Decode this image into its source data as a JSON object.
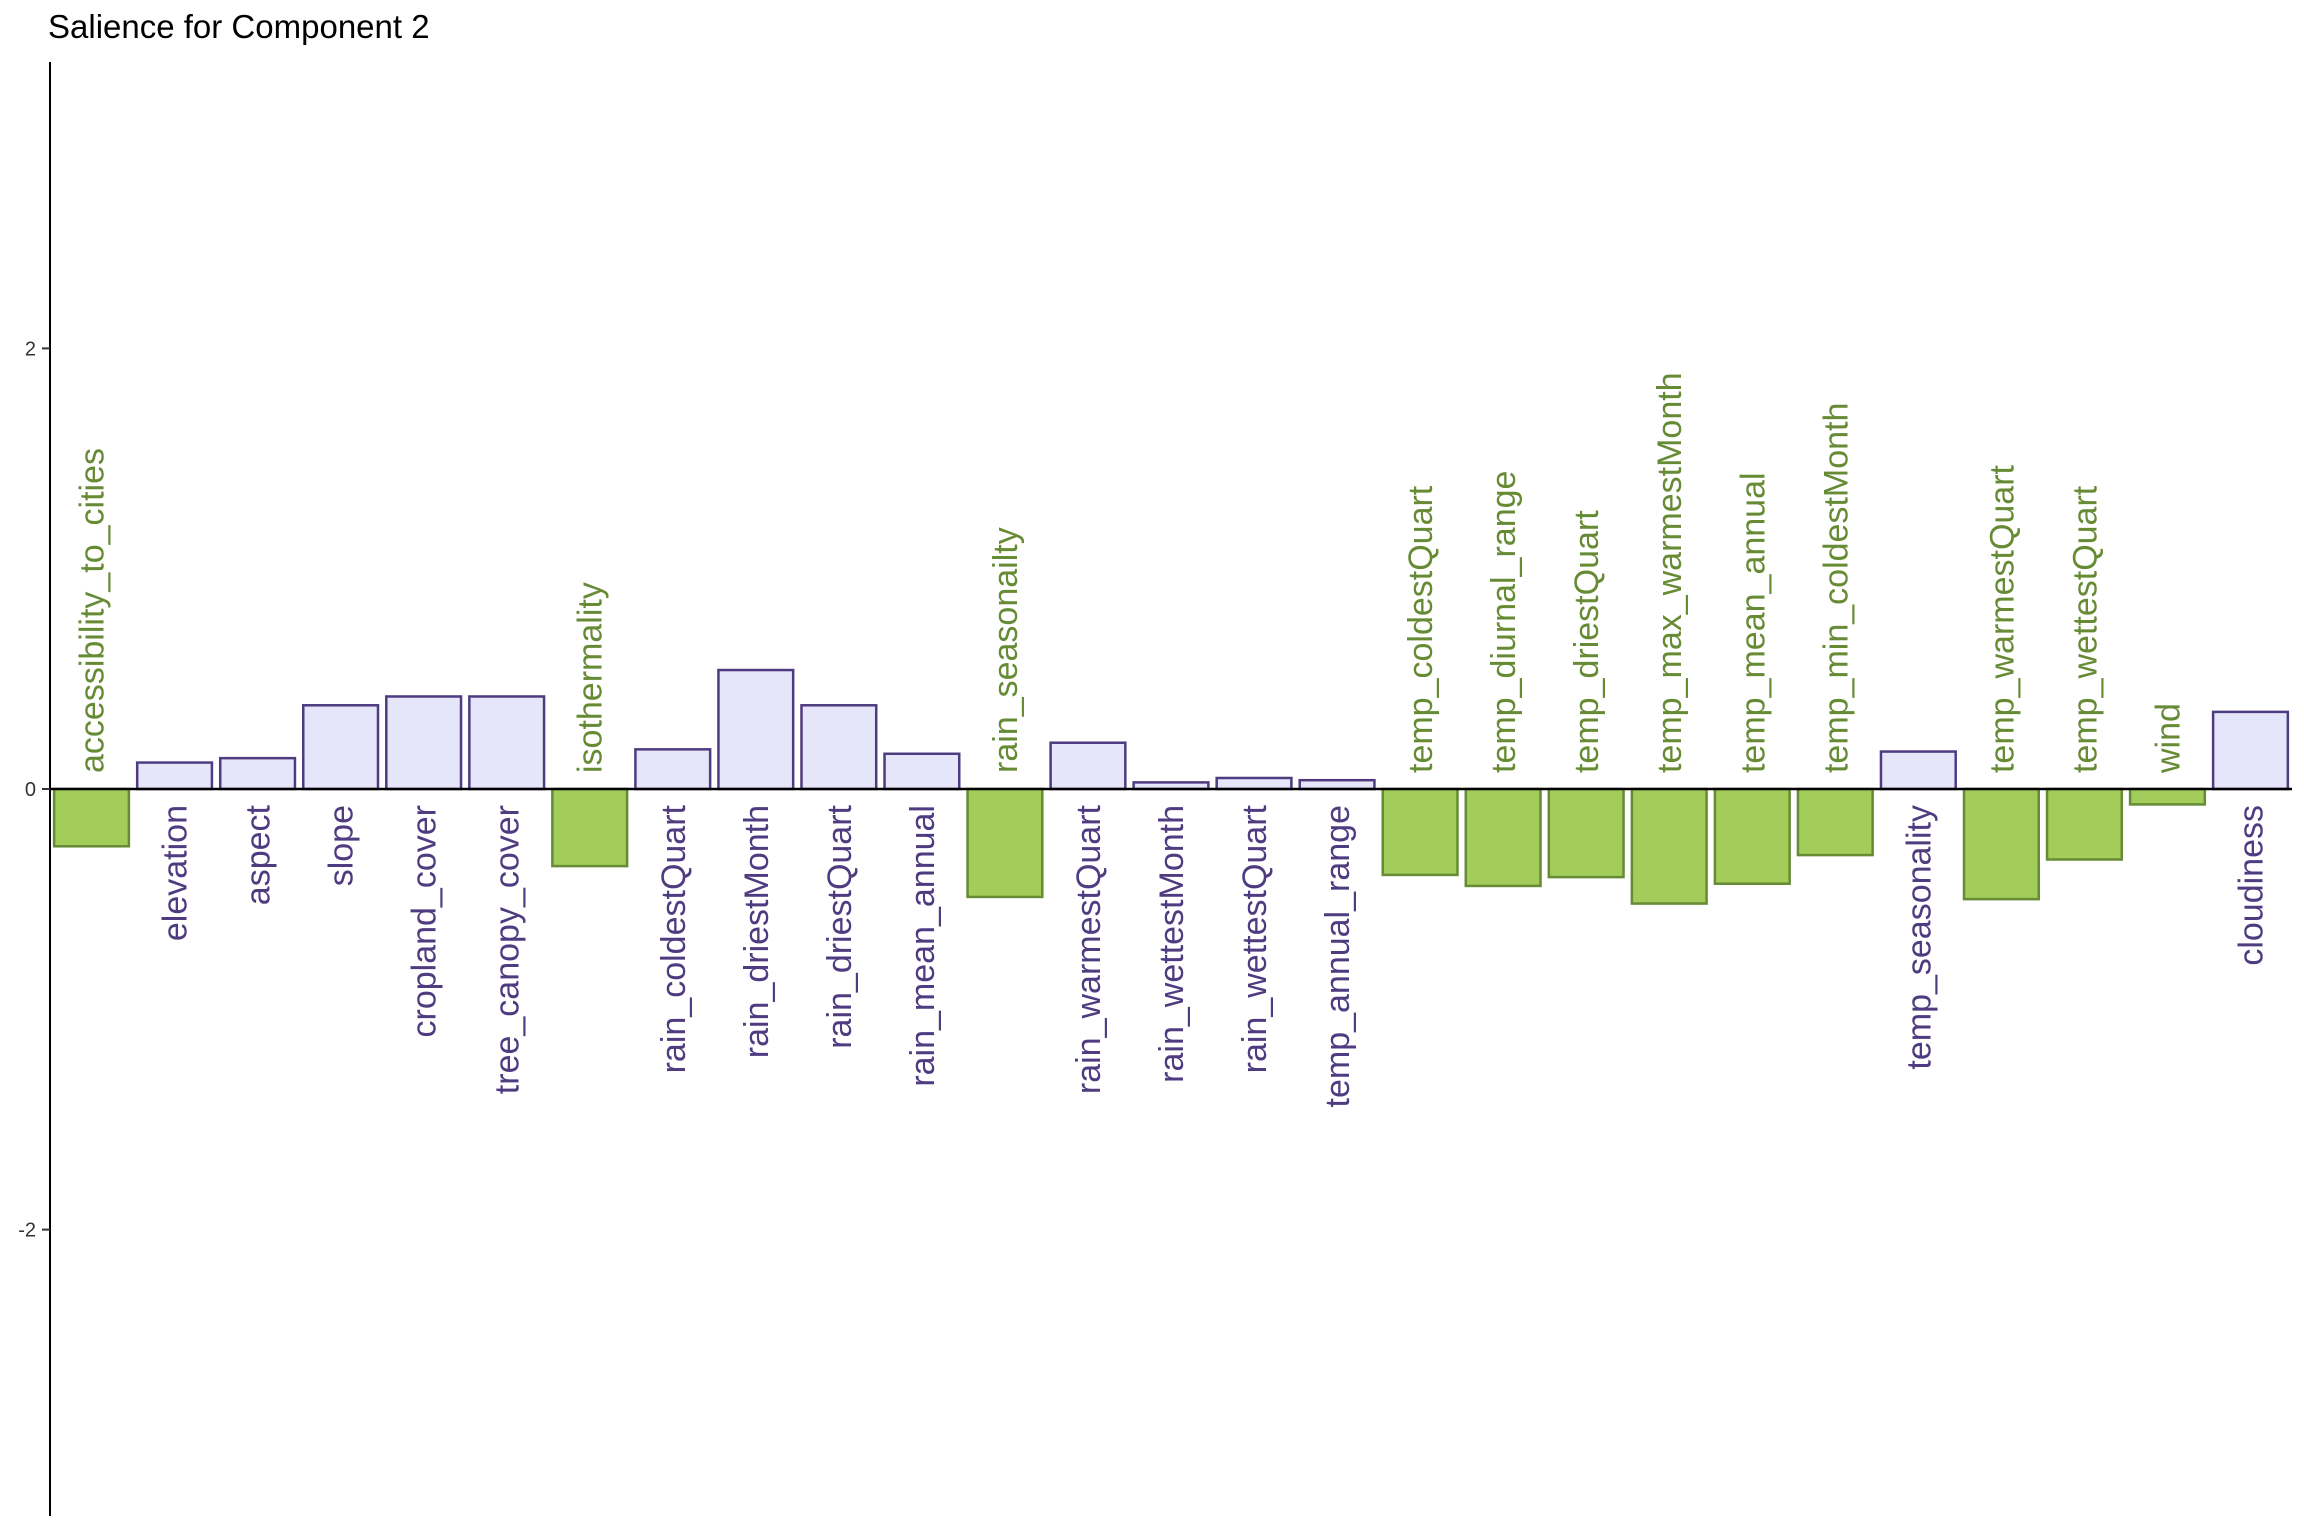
{
  "chart_data": {
    "type": "bar",
    "title": "Salience for Component 2",
    "xlabel": "",
    "ylabel": "",
    "ylim": [
      -3.3,
      3.3
    ],
    "yticks": [
      -2,
      0,
      2
    ],
    "ytick_labels": [
      "-2",
      "0",
      "2"
    ],
    "grid": false,
    "categories": [
      "accessibility_to_cities",
      "elevation",
      "aspect",
      "slope",
      "cropland_cover",
      "tree_canopy_cover",
      "isothermality",
      "rain_coldestQuart",
      "rain_driestMonth",
      "rain_driestQuart",
      "rain_mean_annual",
      "rain_seasonailty",
      "rain_warmestQuart",
      "rain_wettestMonth",
      "rain_wettestQuart",
      "temp_annual_range",
      "temp_coldestQuart",
      "temp_diurnal_range",
      "temp_driestQuart",
      "temp_max_warmestMonth",
      "temp_mean_annual",
      "temp_min_coldestMonth",
      "temp_seasonality",
      "temp_warmestQuart",
      "temp_wettestQuart",
      "wind",
      "cloudiness"
    ],
    "values": [
      -0.26,
      0.12,
      0.14,
      0.38,
      0.42,
      0.42,
      -0.35,
      0.18,
      0.54,
      0.38,
      0.16,
      -0.49,
      0.21,
      0.03,
      0.05,
      0.04,
      -0.39,
      -0.44,
      -0.4,
      -0.52,
      -0.43,
      -0.3,
      0.17,
      -0.5,
      -0.32,
      -0.07,
      0.35
    ],
    "colors": {
      "positive_fill": "#e6e6fa",
      "positive_stroke": "#4f3b80",
      "positive_label": "#4f3b80",
      "negative_fill": "#a2cd5a",
      "negative_stroke": "#668b34",
      "negative_label": "#668b34"
    }
  }
}
